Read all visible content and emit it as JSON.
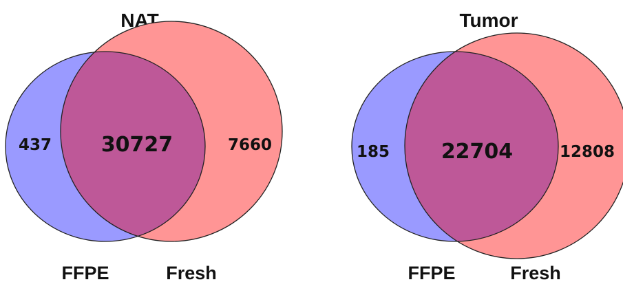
{
  "colors": {
    "ffpe": "#9a9aff",
    "fresh": "#ff9595",
    "overlap": "#be5898",
    "outline": "#222222",
    "text": "#111111"
  },
  "diagrams": [
    {
      "title": "NAT",
      "ffpe_only": "437",
      "both": "30727",
      "fresh_only": "7660",
      "ffpe_label": "FFPE",
      "fresh_label": "Fresh"
    },
    {
      "title": "Tumor",
      "ffpe_only": "185",
      "both": "22704",
      "fresh_only": "12808",
      "ffpe_label": "FFPE",
      "fresh_label": "Fresh"
    }
  ]
}
